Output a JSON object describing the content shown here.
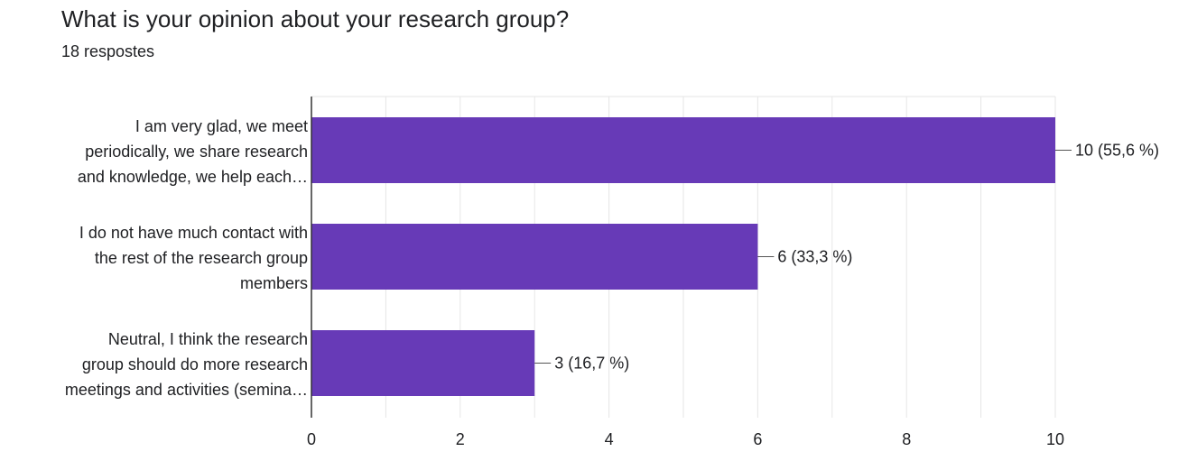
{
  "header": {
    "title": "What is your opinion about your research group?",
    "subtitle": "18 respostes"
  },
  "chart_data": {
    "type": "bar",
    "orientation": "horizontal",
    "categories": [
      [
        "I am very glad, we meet",
        "periodically, we share research",
        "and knowledge, we help each…"
      ],
      [
        "I do not have much contact with",
        "the rest of the research group",
        "members"
      ],
      [
        "Neutral, I think the research",
        "group should do more research",
        "meetings and activities (semina…"
      ]
    ],
    "values": [
      10,
      6,
      3
    ],
    "data_labels": [
      "10 (55,6 %)",
      "6 (33,3 %)",
      "3 (16,7 %)"
    ],
    "xlim": [
      0,
      10
    ],
    "x_ticks": [
      0,
      2,
      4,
      6,
      8,
      10
    ],
    "x_tick_labels": [
      "0",
      "2",
      "4",
      "6",
      "8",
      "10"
    ],
    "grid": true,
    "bar_color": "#673ab7",
    "grid_color": "#e6e6e6",
    "axis_color": "#333333",
    "text_color": "#202124"
  }
}
